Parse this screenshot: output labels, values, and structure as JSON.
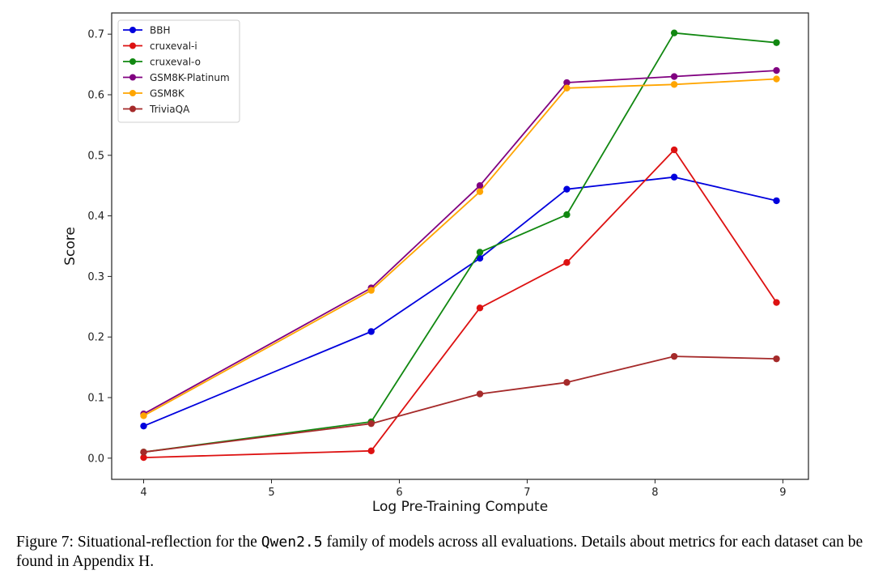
{
  "chart_data": {
    "type": "line",
    "xlabel": "Log Pre-Training Compute",
    "ylabel": "Score",
    "xlim": [
      3.75,
      9.2
    ],
    "ylim": [
      -0.035,
      0.735
    ],
    "xticks": [
      4,
      5,
      6,
      7,
      8,
      9
    ],
    "yticks": [
      0.0,
      0.1,
      0.2,
      0.3,
      0.4,
      0.5,
      0.6,
      0.7
    ],
    "x": [
      4.0,
      5.78,
      6.63,
      7.31,
      8.15,
      8.95
    ],
    "grid": false,
    "legend_position": "top-left",
    "series": [
      {
        "name": "BBH",
        "color": "#0000dd",
        "values": [
          0.053,
          0.209,
          0.33,
          0.444,
          0.464,
          0.425
        ]
      },
      {
        "name": "cruxeval-i",
        "color": "#dd1111",
        "values": [
          0.001,
          0.012,
          0.248,
          0.323,
          0.509,
          0.257
        ]
      },
      {
        "name": "cruxeval-o",
        "color": "#118811",
        "values": [
          0.01,
          0.06,
          0.34,
          0.402,
          0.702,
          0.686
        ]
      },
      {
        "name": "GSM8K-Platinum",
        "color": "#800080",
        "values": [
          0.073,
          0.281,
          0.45,
          0.62,
          0.63,
          0.64
        ]
      },
      {
        "name": "GSM8K",
        "color": "#ffa500",
        "values": [
          0.07,
          0.277,
          0.44,
          0.611,
          0.617,
          0.626
        ]
      },
      {
        "name": "TriviaQA",
        "color": "#a52a2a",
        "values": [
          0.01,
          0.057,
          0.106,
          0.125,
          0.168,
          0.164
        ]
      }
    ]
  },
  "caption": {
    "prefix": "Figure 7: Situational-reflection for the ",
    "model": "Qwen2.5",
    "suffix": " family of models across all evaluations. Details about metrics for each dataset can be found in Appendix H."
  }
}
